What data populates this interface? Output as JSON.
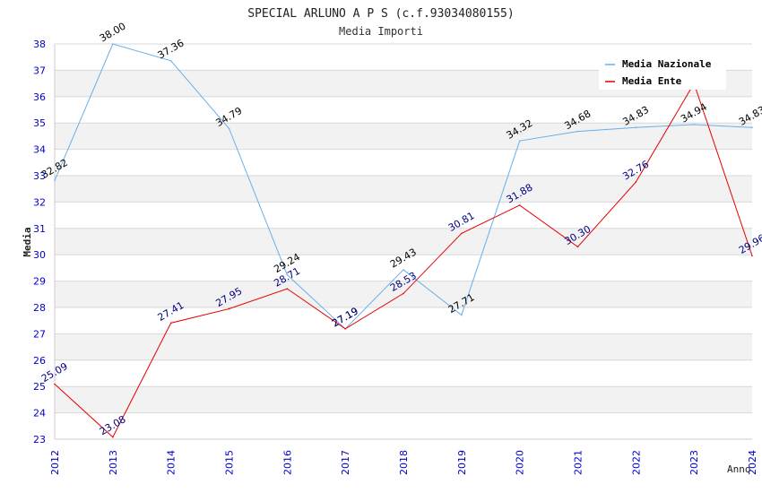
{
  "chart_data": {
    "type": "line",
    "title": "SPECIAL ARLUNO A P S (c.f.93034080155)",
    "subtitle": "Media Importi",
    "xlabel": "Anno",
    "ylabel": "Media",
    "ylim": [
      23,
      38
    ],
    "yticks": [
      "23",
      "24",
      "25",
      "26",
      "27",
      "28",
      "29",
      "30",
      "31",
      "32",
      "33",
      "34",
      "35",
      "36",
      "37",
      "38"
    ],
    "categories": [
      "2012",
      "2013",
      "2014",
      "2015",
      "2016",
      "2017",
      "2018",
      "2019",
      "2020",
      "2021",
      "2022",
      "2023",
      "2024"
    ],
    "grid": true,
    "legend_position": "top-right",
    "series": [
      {
        "name": "Media Nazionale",
        "color": "#6aaee8",
        "label_color": "#000000",
        "values": [
          32.82,
          38.0,
          37.36,
          34.79,
          29.24,
          27.19,
          29.43,
          27.71,
          34.32,
          34.68,
          34.83,
          34.94,
          34.83
        ],
        "labels": [
          "32.82",
          "38.00",
          "37.36",
          "34.79",
          "29.24",
          "27.19",
          "29.43",
          "27.71",
          "34.32",
          "34.68",
          "34.83",
          "34.94",
          "34.83"
        ]
      },
      {
        "name": "Media Ente",
        "color": "#e60000",
        "label_color": "#000080",
        "values": [
          25.09,
          23.08,
          27.41,
          27.95,
          28.71,
          27.19,
          28.53,
          30.81,
          31.88,
          30.3,
          32.76,
          36.5,
          29.96
        ],
        "labels": [
          "25.09",
          "23.08",
          "27.41",
          "27.95",
          "28.71",
          "27.19",
          "28.53",
          "30.81",
          "31.88",
          "30.30",
          "32.76",
          "",
          "29.96"
        ]
      }
    ],
    "colors": {
      "tick_text": "#0000cc",
      "band": "#f2f2f2",
      "grid": "#d8d8d8"
    }
  }
}
